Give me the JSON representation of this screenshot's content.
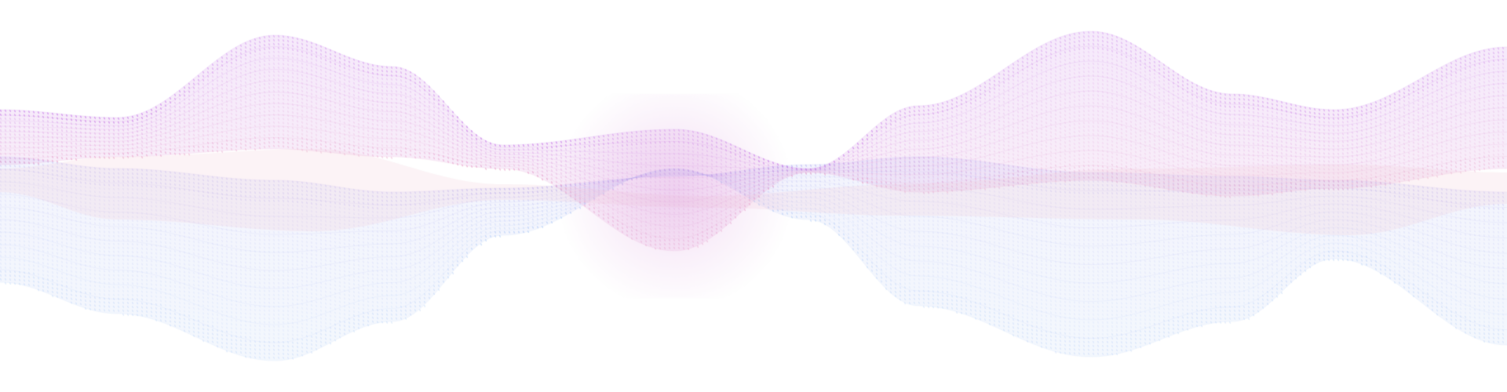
{
  "graphic": {
    "kind": "decorative-ribbon-waves",
    "background_color": "#ffffff",
    "palette": {
      "violet": "#c06ee6",
      "orchid": "#d68ad9",
      "pink": "#e79bc4",
      "lavender": "#a9a0f0",
      "periwinkle": "#9fb4f3",
      "sky": "#a9c8f6",
      "blush": "#f3c9d6"
    },
    "ribbons": [
      {
        "role": "upper-wave",
        "top_color": "violet",
        "bottom_color": "pink"
      },
      {
        "role": "lower-wave",
        "top_color": "lavender",
        "bottom_color": "sky"
      },
      {
        "role": "inner-veil",
        "top_color": "blush",
        "bottom_color": "blush"
      }
    ]
  }
}
